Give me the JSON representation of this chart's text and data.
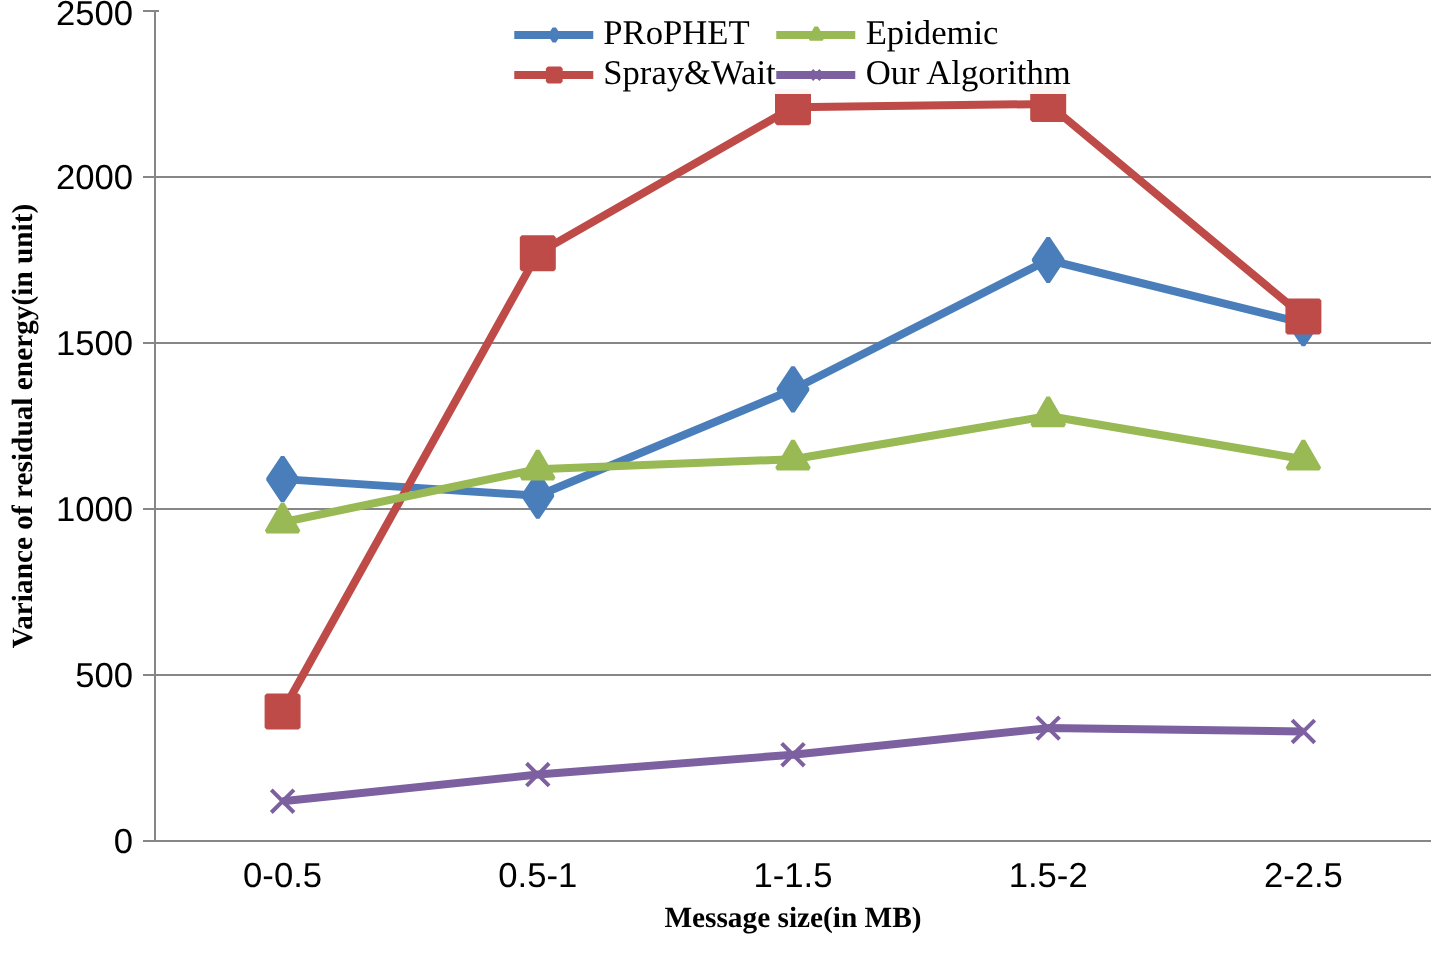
{
  "chart_data": {
    "type": "line",
    "xlabel": "Message size(in MB)",
    "ylabel": "Variance of residual energy(in unit)",
    "categories": [
      "0-0.5",
      "0.5-1",
      "1-1.5",
      "1.5-2",
      "2-2.5"
    ],
    "series": [
      {
        "name": "PRoPHET",
        "color": "#4a7ebb",
        "marker": "diamond",
        "values": [
          1090,
          1040,
          1360,
          1750,
          1560
        ]
      },
      {
        "name": "Spray&Wait",
        "color": "#be4b48",
        "marker": "square",
        "values": [
          390,
          1770,
          2210,
          2220,
          1580
        ]
      },
      {
        "name": "Epidemic",
        "color": "#98b954",
        "marker": "triangle",
        "values": [
          960,
          1120,
          1150,
          1280,
          1150
        ]
      },
      {
        "name": "Our Algorithm",
        "color": "#7d60a0",
        "marker": "cross",
        "values": [
          120,
          200,
          260,
          340,
          330
        ]
      }
    ],
    "ylim": [
      0,
      2500
    ],
    "yticks": [
      0,
      500,
      1000,
      1500,
      2000,
      2500
    ],
    "grid": "y",
    "legend": "top"
  }
}
